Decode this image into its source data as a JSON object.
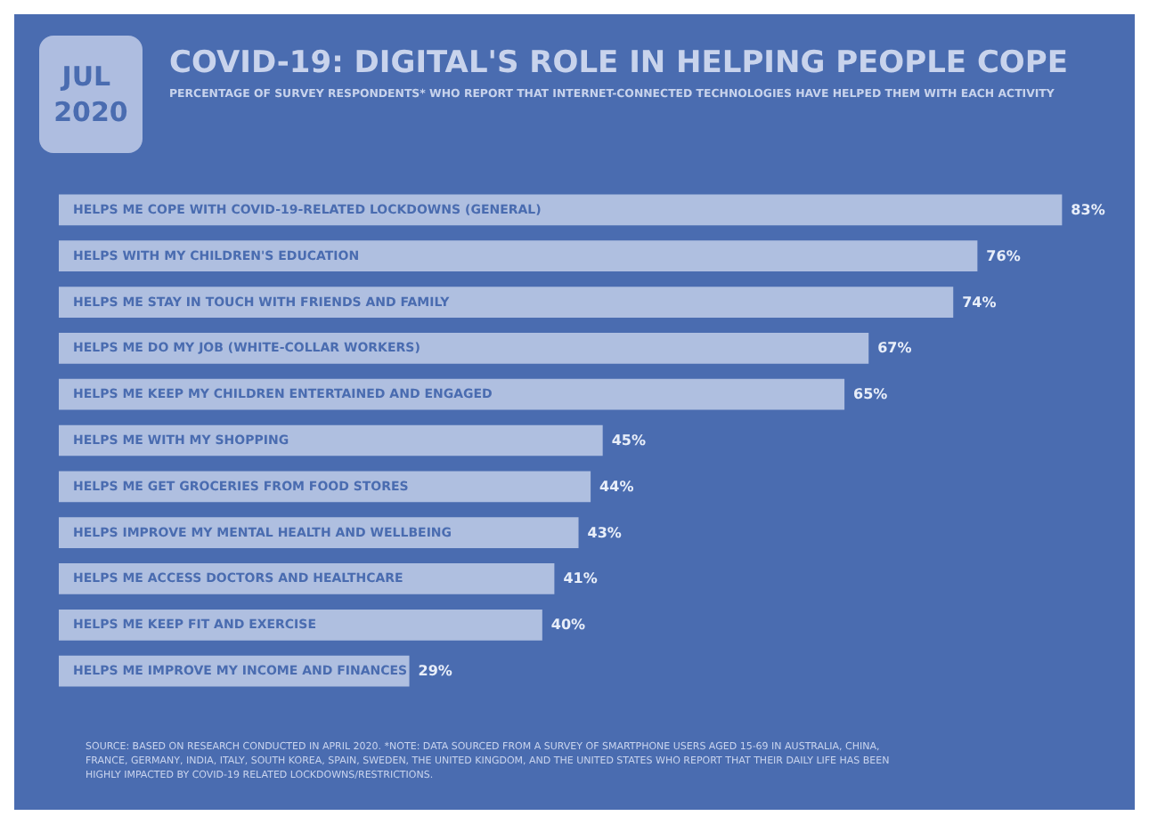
{
  "chart_data": {
    "type": "bar",
    "orientation": "horizontal",
    "title": "COVID-19: DIGITAL'S ROLE IN HELPING PEOPLE COPE",
    "subtitle": "PERCENTAGE OF SURVEY RESPONDENTS* WHO REPORT THAT INTERNET-CONNECTED TECHNOLOGIES HAVE HELPED THEM WITH EACH ACTIVITY",
    "annotations": [
      "JUL 2020",
      "SOURCE: BASED ON RESEARCH CONDUCTED IN APRIL 2020. *NOTE: DATA SOURCED FROM A SURVEY OF SMARTPHONE USERS AGED 15-69 IN AUSTRALIA, CHINA, FRANCE, GERMANY, INDIA, ITALY, SOUTH KOREA, SPAIN, SWEDEN, THE UNITED KINGDOM, AND THE UNITED STATES WHO REPORT THAT THEIR DAILY LIFE HAS BEEN HIGHLY IMPACTED BY COVID-19 RELATED LOCKDOWNS/RESTRICTIONS."
    ],
    "categories": [
      "HELPS ME COPE WITH COVID-19-RELATED LOCKDOWNS (GENERAL)",
      "HELPS WITH MY CHILDREN'S EDUCATION",
      "HELPS ME STAY IN TOUCH WITH FRIENDS AND FAMILY",
      "HELPS ME DO MY JOB (WHITE-COLLAR WORKERS)",
      "HELPS ME KEEP MY CHILDREN ENTERTAINED AND ENGAGED",
      "HELPS ME WITH MY SHOPPING",
      "HELPS ME GET GROCERIES FROM FOOD STORES",
      "HELPS IMPROVE MY MENTAL HEALTH AND WELLBEING",
      "HELPS ME ACCESS DOCTORS AND HEALTHCARE",
      "HELPS ME KEEP FIT AND EXERCISE",
      "HELPS ME IMPROVE MY INCOME AND FINANCES"
    ],
    "values": [
      83,
      76,
      74,
      67,
      65,
      45,
      44,
      43,
      41,
      40,
      29
    ],
    "value_labels": [
      "83%",
      "76%",
      "74%",
      "67%",
      "65%",
      "45%",
      "44%",
      "43%",
      "41%",
      "40%",
      "29%"
    ],
    "color": "#afbfe0"
  }
}
